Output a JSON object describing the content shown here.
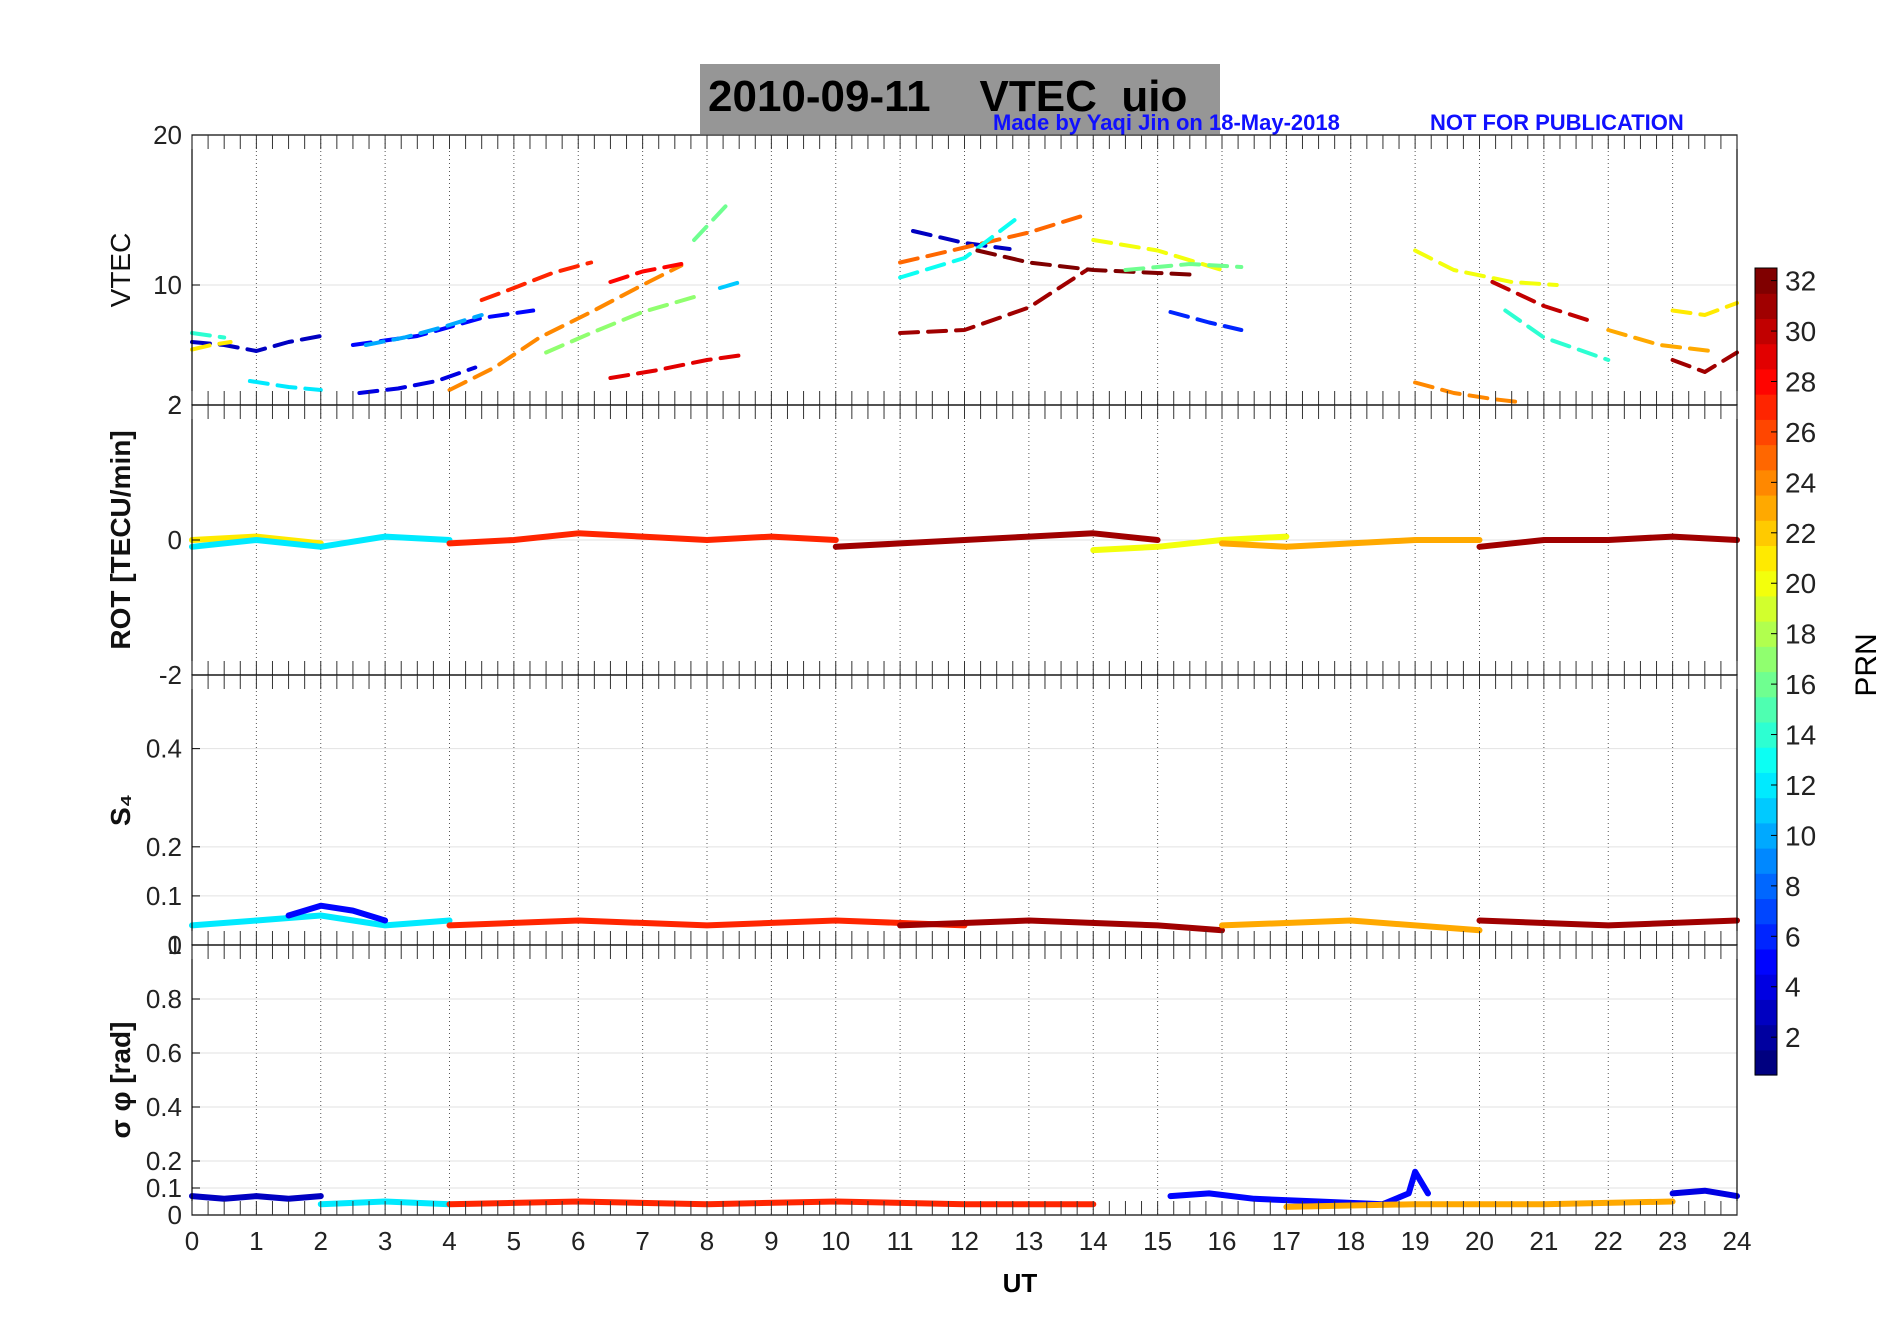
{
  "figure": {
    "title": "2010-09-11    VTEC  uio",
    "credit": "Made by Yaqi Jin on 18-May-2018",
    "notice": "NOT FOR PUBLICATION",
    "xlabel": "UT",
    "colorbar_label": "PRN"
  },
  "chart_data": [
    {
      "type": "scatter",
      "panel": "VTEC",
      "ylabel": "VTEC",
      "xlim": [
        0,
        24
      ],
      "ylim": [
        2,
        20
      ],
      "yticks": [
        "20",
        "10",
        "2"
      ],
      "series": [
        {
          "prn": 3,
          "x": [
            0,
            0.5,
            1,
            1.5,
            2
          ],
          "y": [
            6.2,
            6.0,
            5.6,
            6.2,
            6.6
          ]
        },
        {
          "prn": 21,
          "x": [
            0,
            0.3,
            0.6
          ],
          "y": [
            5.7,
            6.0,
            6.2
          ]
        },
        {
          "prn": 14,
          "x": [
            0,
            0.5
          ],
          "y": [
            6.8,
            6.5
          ]
        },
        {
          "prn": 12,
          "x": [
            0.9,
            1.5,
            2.0
          ],
          "y": [
            3.6,
            3.2,
            3.0
          ]
        },
        {
          "prn": 5,
          "x": [
            2.5,
            3.5,
            4.5,
            5.3
          ],
          "y": [
            6.0,
            6.6,
            7.8,
            8.3
          ]
        },
        {
          "prn": 4,
          "x": [
            2.6,
            3.2,
            3.8,
            4.4
          ],
          "y": [
            2.8,
            3.1,
            3.6,
            4.5
          ]
        },
        {
          "prn": 10,
          "x": [
            2.7,
            3.3,
            3.9,
            4.5
          ],
          "y": [
            6.0,
            6.5,
            7.2,
            8.0
          ]
        },
        {
          "prn": 24,
          "x": [
            4.0,
            4.7,
            5.4,
            6.2,
            7.0,
            7.6
          ],
          "y": [
            3.0,
            4.5,
            6.5,
            8.2,
            10.0,
            11.3
          ]
        },
        {
          "prn": 27,
          "x": [
            4.5,
            5.0,
            5.6,
            6.2
          ],
          "y": [
            9.0,
            9.8,
            10.8,
            11.5
          ]
        },
        {
          "prn": 17,
          "x": [
            5.5,
            6.2,
            7.0,
            7.8
          ],
          "y": [
            5.5,
            6.8,
            8.2,
            9.2
          ]
        },
        {
          "prn": 29,
          "x": [
            6.5,
            7.2,
            8.0,
            8.5
          ],
          "y": [
            3.8,
            4.3,
            5.0,
            5.3
          ]
        },
        {
          "prn": 28,
          "x": [
            6.5,
            7.0,
            7.6
          ],
          "y": [
            10.2,
            10.9,
            11.4
          ]
        },
        {
          "prn": 16,
          "x": [
            7.8,
            8.3
          ],
          "y": [
            13.0,
            15.3
          ]
        },
        {
          "prn": 11,
          "x": [
            8.2,
            8.6
          ],
          "y": [
            9.8,
            10.3
          ]
        },
        {
          "prn": 3,
          "x": [
            11.2,
            12.0,
            12.7
          ],
          "y": [
            13.6,
            12.8,
            12.4
          ]
        },
        {
          "prn": 31,
          "x": [
            11.0,
            12.0,
            13.0,
            13.9
          ],
          "y": [
            6.8,
            7.0,
            8.5,
            11.0
          ]
        },
        {
          "prn": 25,
          "x": [
            11.0,
            12.0,
            13.0,
            13.9
          ],
          "y": [
            11.5,
            12.5,
            13.5,
            14.7
          ]
        },
        {
          "prn": 13,
          "x": [
            11.0,
            12.0,
            12.8
          ],
          "y": [
            10.5,
            11.8,
            14.4
          ]
        },
        {
          "prn": 32,
          "x": [
            12.2,
            13.0,
            14.0,
            15.0,
            15.5
          ],
          "y": [
            12.3,
            11.5,
            11.0,
            10.8,
            10.7
          ]
        },
        {
          "prn": 20,
          "x": [
            14.0,
            15.0,
            16.0
          ],
          "y": [
            13.0,
            12.3,
            11.0
          ]
        },
        {
          "prn": 16,
          "x": [
            14.5,
            15.5,
            16.3
          ],
          "y": [
            11.0,
            11.4,
            11.2
          ]
        },
        {
          "prn": 6,
          "x": [
            15.2,
            15.8,
            16.3
          ],
          "y": [
            8.2,
            7.5,
            7.0
          ]
        },
        {
          "prn": 20,
          "x": [
            19.0,
            19.6,
            20.5,
            21.2
          ],
          "y": [
            12.3,
            11.0,
            10.2,
            10.0
          ]
        },
        {
          "prn": 24,
          "x": [
            19.0,
            19.6,
            20.2,
            20.6
          ],
          "y": [
            3.5,
            2.8,
            2.4,
            2.2
          ]
        },
        {
          "prn": 30,
          "x": [
            20.2,
            21.0,
            21.8
          ],
          "y": [
            10.2,
            8.6,
            7.5
          ]
        },
        {
          "prn": 14,
          "x": [
            20.4,
            21.0,
            22.0
          ],
          "y": [
            8.3,
            6.5,
            5.0
          ]
        },
        {
          "prn": 23,
          "x": [
            22.0,
            22.8,
            23.6
          ],
          "y": [
            7.0,
            6.0,
            5.6
          ]
        },
        {
          "prn": 31,
          "x": [
            23.0,
            23.5,
            24.0
          ],
          "y": [
            5.0,
            4.2,
            5.5
          ]
        },
        {
          "prn": 21,
          "x": [
            23.0,
            23.5,
            24.0
          ],
          "y": [
            8.3,
            8.0,
            8.8
          ]
        }
      ]
    },
    {
      "type": "scatter",
      "panel": "ROT",
      "ylabel": "ROT [TECU/min]",
      "xlim": [
        0,
        24
      ],
      "ylim": [
        -2,
        2
      ],
      "yticks": [
        "2",
        "0",
        "-2"
      ],
      "series": [
        {
          "prn": 21,
          "x": [
            0,
            1,
            2
          ],
          "y": [
            0.0,
            0.05,
            -0.05
          ]
        },
        {
          "prn": 12,
          "x": [
            0,
            1,
            2,
            3,
            4
          ],
          "y": [
            -0.1,
            0.0,
            -0.1,
            0.05,
            0.0
          ]
        },
        {
          "prn": 27,
          "x": [
            4,
            5,
            6,
            7,
            8,
            9,
            10
          ],
          "y": [
            -0.05,
            0.0,
            0.1,
            0.05,
            0.0,
            0.05,
            0.0
          ]
        },
        {
          "prn": 31,
          "x": [
            10,
            11,
            12,
            13,
            14,
            15
          ],
          "y": [
            -0.1,
            -0.05,
            0.0,
            0.05,
            0.1,
            0.0
          ]
        },
        {
          "prn": 20,
          "x": [
            14,
            15,
            16,
            17
          ],
          "y": [
            -0.15,
            -0.1,
            0.0,
            0.05
          ]
        },
        {
          "prn": 23,
          "x": [
            16,
            17,
            18,
            19,
            20
          ],
          "y": [
            -0.05,
            -0.1,
            -0.05,
            0.0,
            0.0
          ]
        },
        {
          "prn": 31,
          "x": [
            20,
            21,
            22,
            23,
            24
          ],
          "y": [
            -0.1,
            0.0,
            0.0,
            0.05,
            0.0
          ]
        }
      ]
    },
    {
      "type": "scatter",
      "panel": "S4",
      "ylabel": "S₄",
      "xlim": [
        0,
        24
      ],
      "ylim": [
        0,
        0.55
      ],
      "yticks": [
        "0.4",
        "0.2",
        "0.1",
        "0"
      ],
      "series": [
        {
          "prn": 12,
          "x": [
            0,
            1,
            2,
            3,
            4
          ],
          "y": [
            0.04,
            0.05,
            0.06,
            0.04,
            0.05
          ]
        },
        {
          "prn": 5,
          "x": [
            1.5,
            2,
            2.5,
            3
          ],
          "y": [
            0.06,
            0.08,
            0.07,
            0.05
          ]
        },
        {
          "prn": 27,
          "x": [
            4,
            6,
            8,
            10,
            12
          ],
          "y": [
            0.04,
            0.05,
            0.04,
            0.05,
            0.04
          ]
        },
        {
          "prn": 31,
          "x": [
            11,
            13,
            15,
            16
          ],
          "y": [
            0.04,
            0.05,
            0.04,
            0.03
          ]
        },
        {
          "prn": 23,
          "x": [
            16,
            18,
            20
          ],
          "y": [
            0.04,
            0.05,
            0.03
          ]
        },
        {
          "prn": 31,
          "x": [
            20,
            22,
            24
          ],
          "y": [
            0.05,
            0.04,
            0.05
          ]
        }
      ]
    },
    {
      "type": "scatter",
      "panel": "sigma_phi",
      "ylabel": "σ φ [rad]",
      "xlim": [
        0,
        24
      ],
      "ylim": [
        0,
        1
      ],
      "yticks": [
        "1",
        "0.8",
        "0.6",
        "0.4",
        "0.2",
        "0.1",
        "0"
      ],
      "series": [
        {
          "prn": 3,
          "x": [
            0,
            0.5,
            1,
            1.5,
            2
          ],
          "y": [
            0.07,
            0.06,
            0.07,
            0.06,
            0.07
          ]
        },
        {
          "prn": 12,
          "x": [
            2,
            3,
            4
          ],
          "y": [
            0.04,
            0.05,
            0.04
          ]
        },
        {
          "prn": 27,
          "x": [
            4,
            6,
            8,
            10,
            12,
            14
          ],
          "y": [
            0.04,
            0.05,
            0.04,
            0.05,
            0.04,
            0.04
          ]
        },
        {
          "prn": 5,
          "x": [
            15.2,
            15.8,
            16.5,
            17.5,
            18.5,
            18.9,
            19.0,
            19.2
          ],
          "y": [
            0.07,
            0.08,
            0.06,
            0.05,
            0.04,
            0.08,
            0.16,
            0.08
          ]
        },
        {
          "prn": 23,
          "x": [
            17,
            19,
            21,
            23
          ],
          "y": [
            0.03,
            0.04,
            0.04,
            0.05
          ]
        },
        {
          "prn": 4,
          "x": [
            23.0,
            23.5,
            24.0
          ],
          "y": [
            0.08,
            0.09,
            0.07
          ]
        }
      ]
    }
  ],
  "colorbar": {
    "range": [
      1,
      32
    ],
    "ticks": [
      "2",
      "4",
      "6",
      "8",
      "10",
      "12",
      "14",
      "16",
      "18",
      "20",
      "22",
      "24",
      "26",
      "28",
      "30",
      "32"
    ]
  },
  "x_ticks": [
    "0",
    "1",
    "2",
    "3",
    "4",
    "5",
    "6",
    "7",
    "8",
    "9",
    "10",
    "11",
    "12",
    "13",
    "14",
    "15",
    "16",
    "17",
    "18",
    "19",
    "20",
    "21",
    "22",
    "23",
    "24"
  ]
}
